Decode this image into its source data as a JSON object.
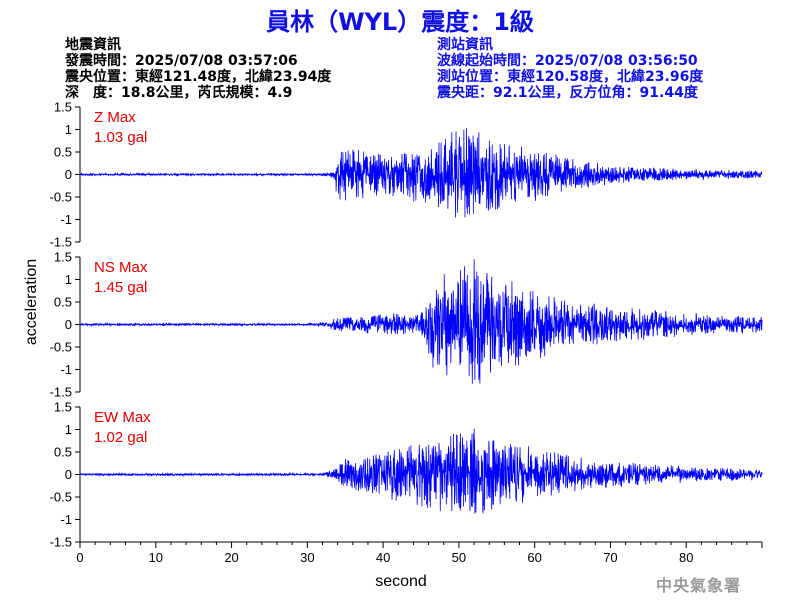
{
  "title": "員林（WYL）震度：1級",
  "earthquake_info": {
    "heading": "地震資訊",
    "origin_time": "發震時間：2025/07/08 03:57:06",
    "epicenter": "震央位置：東經121.48度，北緯23.94度",
    "depth_magnitude": "深　度：18.8公里，芮氏規模：4.9"
  },
  "station_info": {
    "heading": "測站資訊",
    "waveform_start": "波線起始時間：2025/07/08 03:56:50",
    "station_location": "測站位置：東經120.58度，北緯23.96度",
    "distance_azimuth": "震央距：92.1公里，反方位角：91.44度"
  },
  "watermark": "中央氣象署",
  "colors": {
    "title": "#1010e0",
    "trace": "#0000ff",
    "max_label": "#e00000",
    "station_info": "#1010e0"
  },
  "chart_data": {
    "type": "line",
    "xlabel": "second",
    "ylabel": "acceleration",
    "xlim": [
      0,
      90
    ],
    "ylim": [
      -1.5,
      1.5
    ],
    "x_ticks": [
      0,
      10,
      20,
      30,
      40,
      50,
      60,
      70,
      80
    ],
    "y_ticks": [
      "1.5",
      "1",
      "0.5",
      "0",
      "-0.5",
      "-1",
      "-1.5"
    ],
    "grid": false,
    "series": [
      {
        "name": "Z",
        "max_label": "Z Max",
        "max_value": "1.03 gal",
        "peak": 1.03,
        "envelope": [
          [
            0,
            0.02
          ],
          [
            32,
            0.02
          ],
          [
            33.5,
            0.08
          ],
          [
            34,
            0.55
          ],
          [
            37,
            0.45
          ],
          [
            42,
            0.42
          ],
          [
            46,
            0.6
          ],
          [
            49,
            0.85
          ],
          [
            51,
            0.95
          ],
          [
            55,
            0.7
          ],
          [
            60,
            0.5
          ],
          [
            65,
            0.3
          ],
          [
            70,
            0.18
          ],
          [
            80,
            0.1
          ],
          [
            90,
            0.08
          ]
        ]
      },
      {
        "name": "NS",
        "max_label": "NS Max",
        "max_value": "1.45 gal",
        "peak": 1.45,
        "envelope": [
          [
            0,
            0.02
          ],
          [
            31,
            0.02
          ],
          [
            33,
            0.08
          ],
          [
            34,
            0.15
          ],
          [
            40,
            0.2
          ],
          [
            45,
            0.22
          ],
          [
            46.5,
            0.9
          ],
          [
            50,
            1.05
          ],
          [
            52,
            1.2
          ],
          [
            56,
            0.85
          ],
          [
            60,
            0.7
          ],
          [
            65,
            0.45
          ],
          [
            70,
            0.35
          ],
          [
            80,
            0.22
          ],
          [
            90,
            0.15
          ]
        ]
      },
      {
        "name": "EW",
        "max_label": "EW Max",
        "max_value": "1.02 gal",
        "peak": 1.02,
        "envelope": [
          [
            0,
            0.02
          ],
          [
            32,
            0.02
          ],
          [
            33.5,
            0.1
          ],
          [
            35,
            0.3
          ],
          [
            40,
            0.45
          ],
          [
            46,
            0.65
          ],
          [
            50,
            0.8
          ],
          [
            52,
            0.9
          ],
          [
            55,
            0.7
          ],
          [
            60,
            0.5
          ],
          [
            65,
            0.35
          ],
          [
            70,
            0.25
          ],
          [
            80,
            0.15
          ],
          [
            90,
            0.1
          ]
        ]
      }
    ]
  }
}
